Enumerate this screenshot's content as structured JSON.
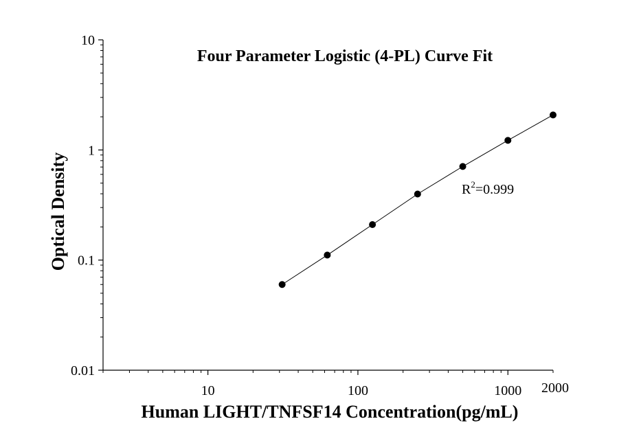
{
  "chart_data": {
    "type": "scatter",
    "title": "Four Parameter Logistic (4-PL) Curve Fit",
    "xlabel": "Human LIGHT/TNFSF14 Concentration(pg/mL)",
    "ylabel": "Optical Density",
    "x_scale": "log",
    "y_scale": "log",
    "xlim": [
      2,
      2000
    ],
    "ylim": [
      0.01,
      10
    ],
    "x_ticks": [
      {
        "value": 10,
        "label": "10"
      },
      {
        "value": 100,
        "label": "100"
      },
      {
        "value": 1000,
        "label": "1000"
      },
      {
        "value": 2000,
        "label": "2000"
      }
    ],
    "y_ticks": [
      {
        "value": 0.01,
        "label": "0.01"
      },
      {
        "value": 0.1,
        "label": "0.1"
      },
      {
        "value": 1,
        "label": "1"
      },
      {
        "value": 10,
        "label": "10"
      }
    ],
    "grid": false,
    "points": [
      {
        "x": 31.25,
        "y": 0.06
      },
      {
        "x": 62.5,
        "y": 0.111
      },
      {
        "x": 125,
        "y": 0.21
      },
      {
        "x": 250,
        "y": 0.398
      },
      {
        "x": 500,
        "y": 0.708
      },
      {
        "x": 1000,
        "y": 1.222
      },
      {
        "x": 2000,
        "y": 2.079
      }
    ],
    "annotation": {
      "prefix": "R",
      "superscript": "2",
      "suffix": "=0.999"
    },
    "colors": {
      "points": "#000000",
      "curve": "#000000",
      "axes": "#000000"
    }
  }
}
